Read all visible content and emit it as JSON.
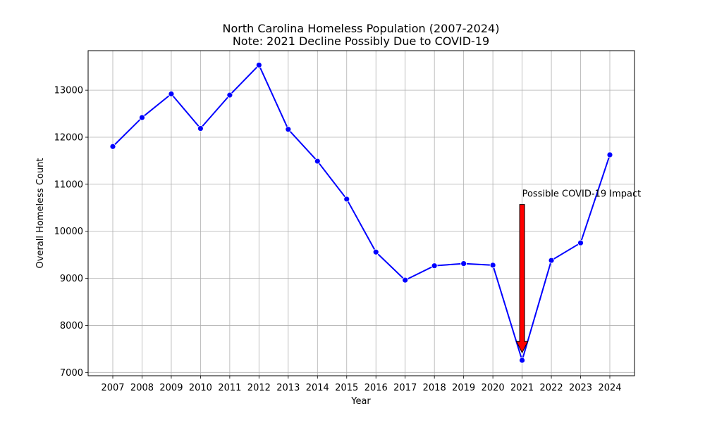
{
  "chart_data": {
    "type": "line",
    "title": "North Carolina Homeless Population (2007-2024)",
    "subtitle": "Note: 2021 Decline Possibly Due to COVID-19",
    "xlabel": "Year",
    "ylabel": "Overall Homeless Count",
    "categories": [
      "2007",
      "2008",
      "2009",
      "2010",
      "2011",
      "2012",
      "2013",
      "2014",
      "2015",
      "2016",
      "2017",
      "2018",
      "2019",
      "2020",
      "2021",
      "2022",
      "2023",
      "2024"
    ],
    "series": [
      {
        "values": [
          11802,
          12418,
          12920,
          12187,
          12896,
          13534,
          12168,
          11491,
          10685,
          9559,
          8962,
          9268,
          9314,
          9280,
          7258,
          9382,
          9754,
          11626
        ],
        "color": "#0000ff",
        "marker": "circle"
      }
    ],
    "y_ticks": [
      7000,
      8000,
      9000,
      10000,
      11000,
      12000,
      13000
    ],
    "ylim": [
      6930,
      13840
    ],
    "grid": true,
    "annotation": {
      "text": "Possible COVID-19 Impact",
      "category": "2021",
      "text_y": 10800,
      "arrow_tail_y": 10570,
      "arrow_head_y": 7420,
      "color": "#ff0000"
    }
  }
}
